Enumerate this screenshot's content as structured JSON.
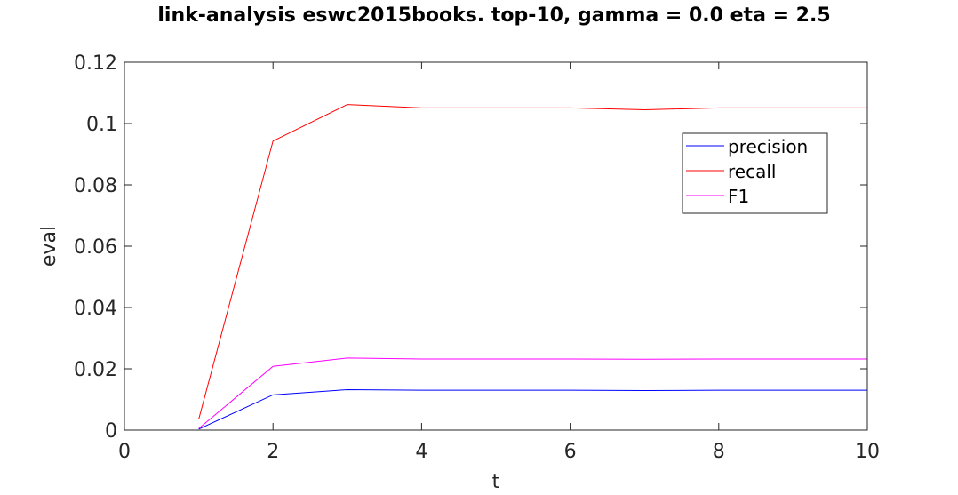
{
  "chart_data": {
    "type": "line",
    "title": "link-analysis eswc2015books. top-10, gamma = 0.0 eta = 2.5",
    "xlabel": "t",
    "ylabel": "eval",
    "xlim": [
      0,
      10
    ],
    "ylim": [
      0,
      0.12
    ],
    "xticks": [
      "0",
      "2",
      "4",
      "6",
      "8",
      "10"
    ],
    "yticks": [
      "0",
      "0.02",
      "0.04",
      "0.06",
      "0.08",
      "0.1",
      "0.12"
    ],
    "grid": false,
    "legend_position": "top-right",
    "x": [
      1,
      2,
      3,
      4,
      5,
      6,
      7,
      8,
      9,
      10
    ],
    "series": [
      {
        "name": "precision",
        "color": "#0000ff",
        "values": [
          0.0003,
          0.0115,
          0.0132,
          0.013,
          0.013,
          0.013,
          0.0129,
          0.013,
          0.013,
          0.013
        ]
      },
      {
        "name": "recall",
        "color": "#ff0000",
        "values": [
          0.0035,
          0.0943,
          0.1062,
          0.1051,
          0.1051,
          0.1051,
          0.1045,
          0.1051,
          0.1051,
          0.1051
        ]
      },
      {
        "name": "F1",
        "color": "#ff00ff",
        "values": [
          0.0005,
          0.0208,
          0.0235,
          0.0232,
          0.0232,
          0.0232,
          0.0231,
          0.0232,
          0.0232,
          0.0232
        ]
      }
    ]
  }
}
